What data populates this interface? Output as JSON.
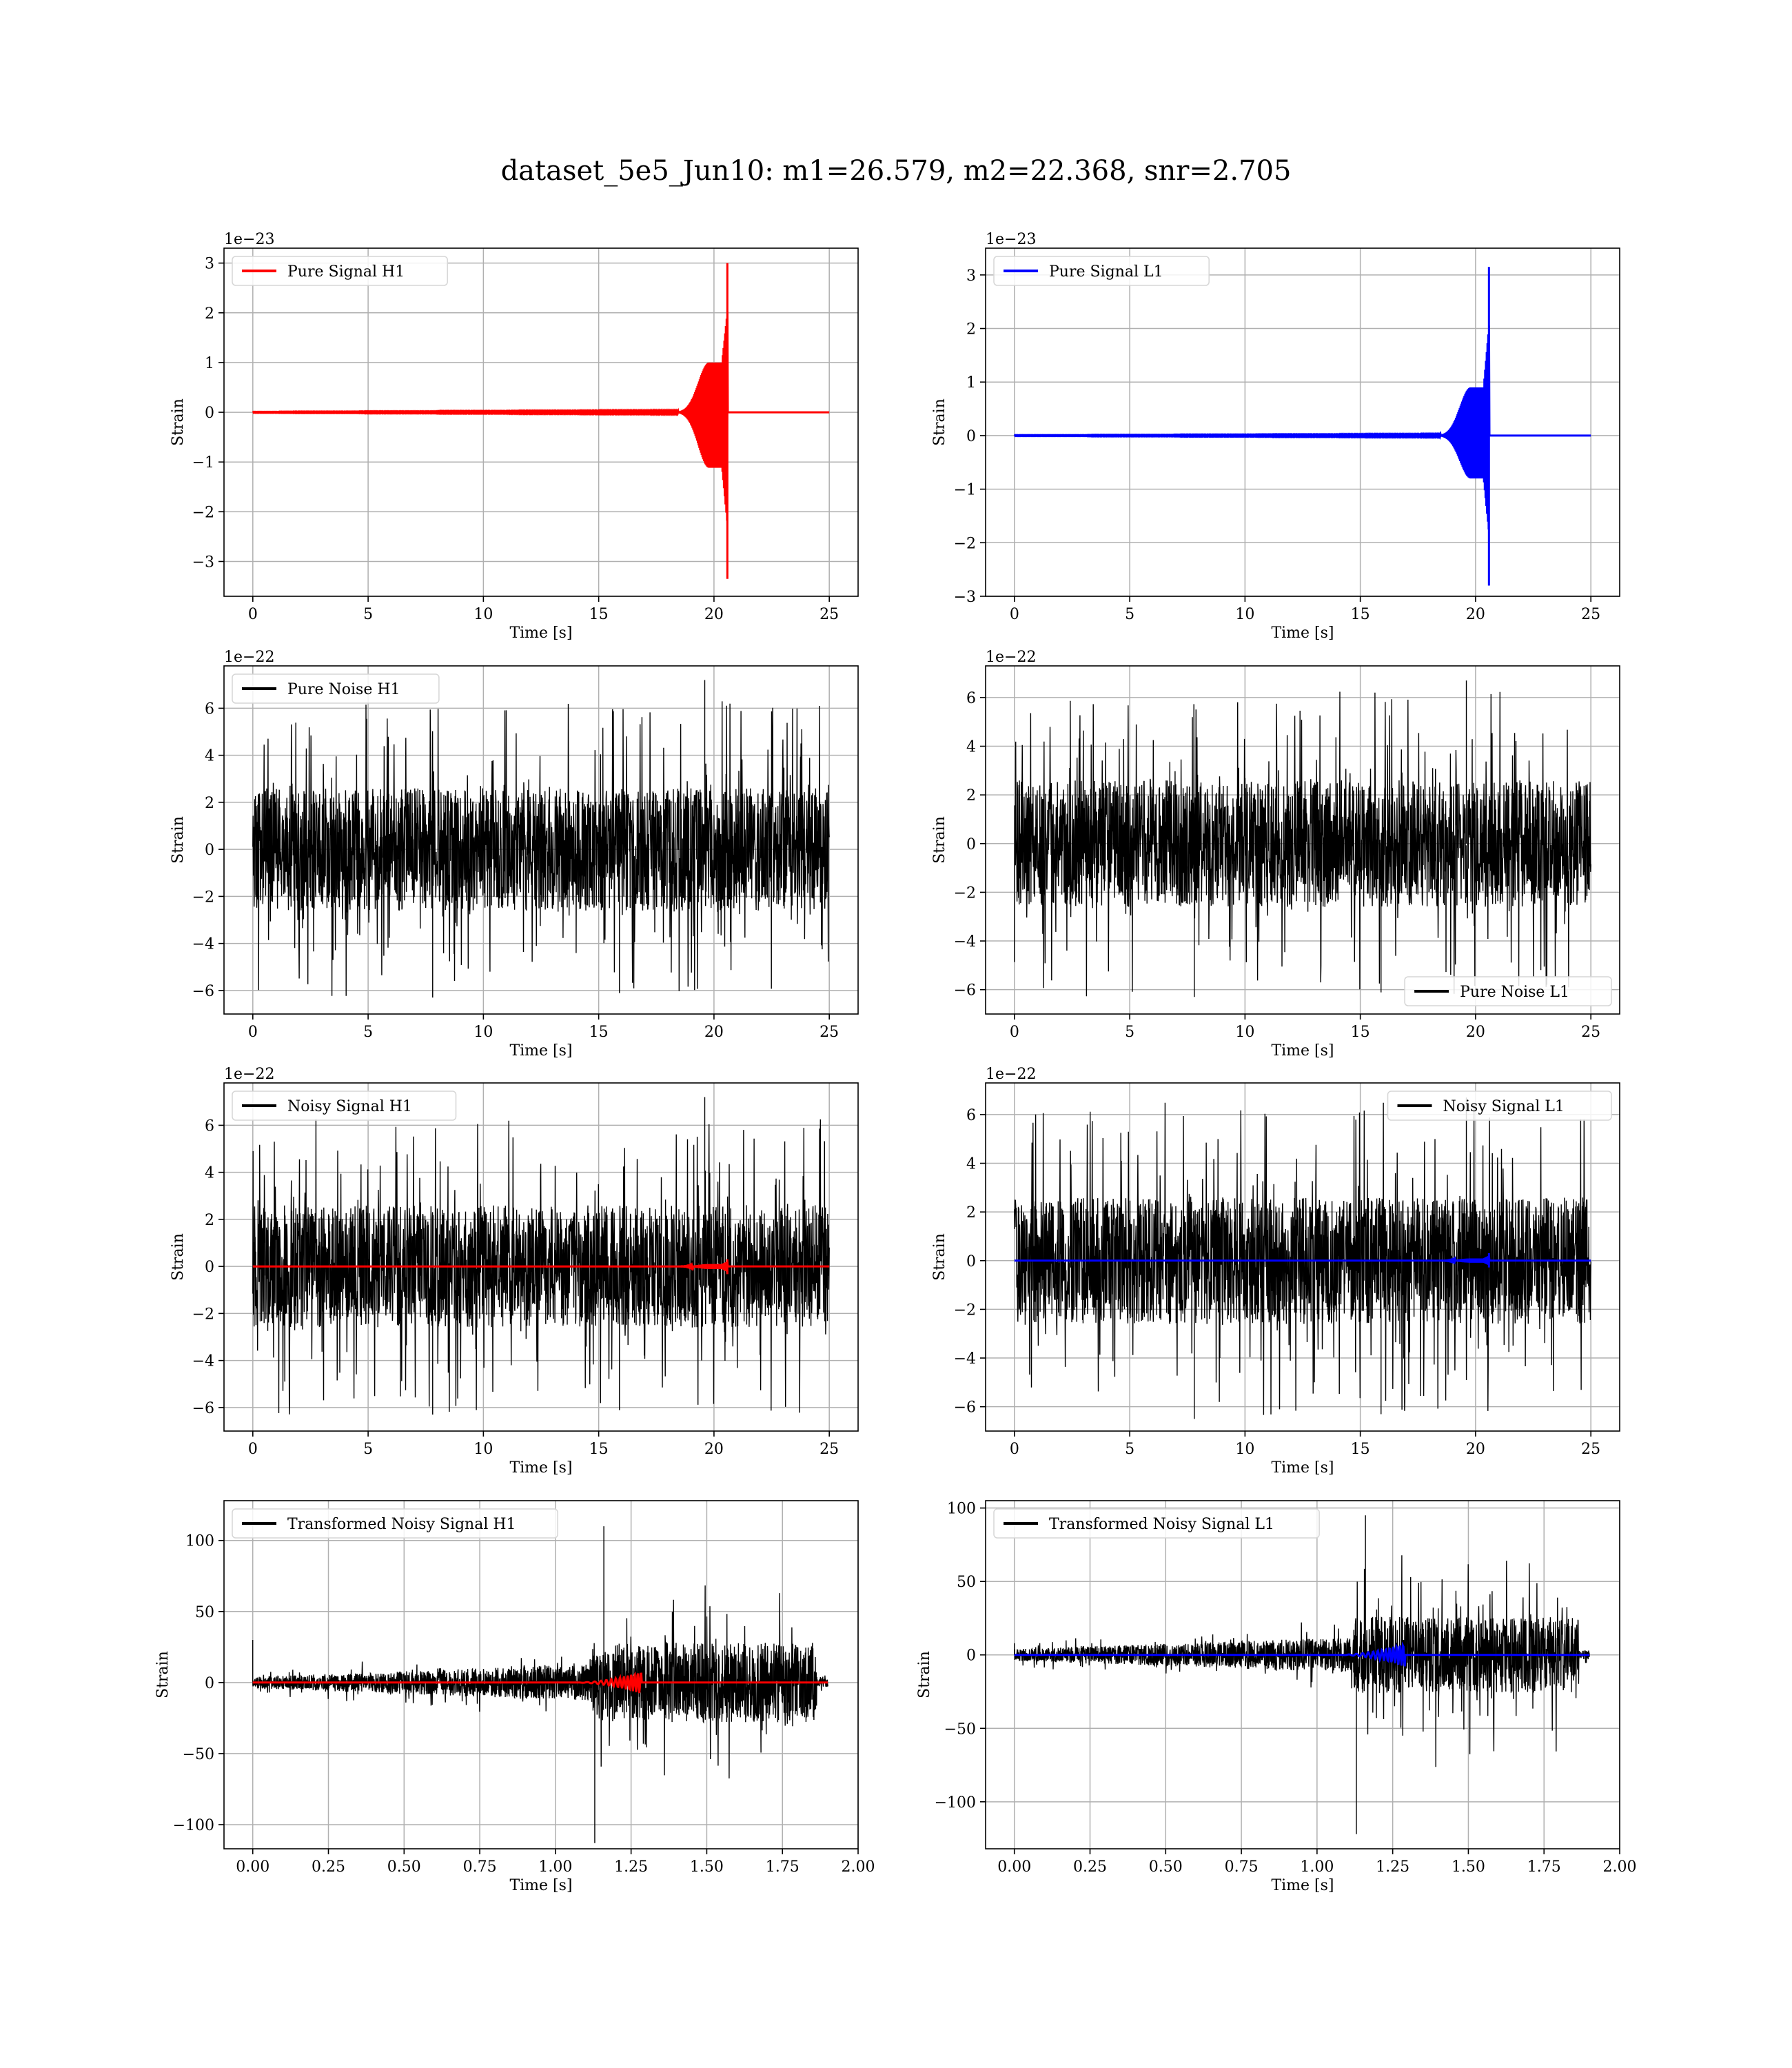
{
  "figure_title": "dataset_5e5_Jun10: m1=26.579, m2=22.368, snr=2.705",
  "colors": {
    "h1_signal": "#ff0000",
    "l1_signal": "#0000ff",
    "noise": "#000000",
    "grid": "#b0b0b0"
  },
  "chart_data": [
    {
      "type": "line",
      "panel": "pure-signal-h1",
      "xlabel": "Time [s]",
      "ylabel": "Strain",
      "multiplier": "1e−23",
      "xlim": [
        -1.25,
        26.25
      ],
      "ylim": [
        -3.7,
        3.3
      ],
      "xticks": [
        0,
        5,
        10,
        15,
        20,
        25
      ],
      "xtick_labels": [
        "0",
        "5",
        "10",
        "15",
        "20",
        "25"
      ],
      "yticks": [
        -3,
        -2,
        -1,
        0,
        1,
        2,
        3
      ],
      "ytick_labels": [
        "−3",
        "−2",
        "−1",
        "0",
        "1",
        "2",
        "3"
      ],
      "grid": true,
      "legend_loc": "upper left",
      "series": [
        {
          "name": "Pure Signal H1",
          "color": "#ff0000",
          "kind": "chirp",
          "x_range": [
            0,
            25
          ],
          "merger": 20.6,
          "peak_pos": 3.0,
          "peak_neg": -3.35,
          "plateau": 1.0
        }
      ]
    },
    {
      "type": "line",
      "panel": "pure-signal-l1",
      "xlabel": "Time [s]",
      "ylabel": "Strain",
      "multiplier": "1e−23",
      "xlim": [
        -1.25,
        26.25
      ],
      "ylim": [
        -3.0,
        3.5
      ],
      "xticks": [
        0,
        5,
        10,
        15,
        20,
        25
      ],
      "xtick_labels": [
        "0",
        "5",
        "10",
        "15",
        "20",
        "25"
      ],
      "yticks": [
        -3,
        -2,
        -1,
        0,
        1,
        2,
        3
      ],
      "ytick_labels": [
        "−3",
        "−2",
        "−1",
        "0",
        "1",
        "2",
        "3"
      ],
      "grid": true,
      "legend_loc": "upper left",
      "series": [
        {
          "name": "Pure Signal L1",
          "color": "#0000ff",
          "kind": "chirp",
          "x_range": [
            0,
            25
          ],
          "merger": 20.6,
          "peak_pos": 3.15,
          "peak_neg": -2.8,
          "plateau": 0.9
        }
      ]
    },
    {
      "type": "line",
      "panel": "pure-noise-h1",
      "xlabel": "Time [s]",
      "ylabel": "Strain",
      "multiplier": "1e−22",
      "xlim": [
        -1.25,
        26.25
      ],
      "ylim": [
        -7,
        7.8
      ],
      "xticks": [
        0,
        5,
        10,
        15,
        20,
        25
      ],
      "xtick_labels": [
        "0",
        "5",
        "10",
        "15",
        "20",
        "25"
      ],
      "yticks": [
        -6,
        -4,
        -2,
        0,
        2,
        4,
        6
      ],
      "ytick_labels": [
        "−6",
        "−4",
        "−2",
        "0",
        "2",
        "4",
        "6"
      ],
      "grid": true,
      "legend_loc": "upper left",
      "series": [
        {
          "name": "Pure Noise H1",
          "color": "#000000",
          "kind": "noise",
          "x_range": [
            0,
            25
          ],
          "band": 2.6,
          "max": 7.2,
          "min": -6.3
        }
      ]
    },
    {
      "type": "line",
      "panel": "pure-noise-l1",
      "xlabel": "Time [s]",
      "ylabel": "Strain",
      "multiplier": "1e−22",
      "xlim": [
        -1.25,
        26.25
      ],
      "ylim": [
        -7,
        7.3
      ],
      "xticks": [
        0,
        5,
        10,
        15,
        20,
        25
      ],
      "xtick_labels": [
        "0",
        "5",
        "10",
        "15",
        "20",
        "25"
      ],
      "yticks": [
        -6,
        -4,
        -2,
        0,
        2,
        4,
        6
      ],
      "ytick_labels": [
        "−6",
        "−4",
        "−2",
        "0",
        "2",
        "4",
        "6"
      ],
      "grid": true,
      "legend_loc": "lower right",
      "series": [
        {
          "name": "Pure Noise L1",
          "color": "#000000",
          "kind": "noise",
          "x_range": [
            0,
            25
          ],
          "band": 2.6,
          "max": 6.7,
          "min": -6.3
        }
      ]
    },
    {
      "type": "line",
      "panel": "noisy-signal-h1",
      "xlabel": "Time [s]",
      "ylabel": "Strain",
      "multiplier": "1e−22",
      "xlim": [
        -1.25,
        26.25
      ],
      "ylim": [
        -7,
        7.8
      ],
      "xticks": [
        0,
        5,
        10,
        15,
        20,
        25
      ],
      "xtick_labels": [
        "0",
        "5",
        "10",
        "15",
        "20",
        "25"
      ],
      "yticks": [
        -6,
        -4,
        -2,
        0,
        2,
        4,
        6
      ],
      "ytick_labels": [
        "−6",
        "−4",
        "−2",
        "0",
        "2",
        "4",
        "6"
      ],
      "grid": true,
      "legend_loc": "upper left",
      "series": [
        {
          "name": "Noisy Signal H1",
          "color": "#000000",
          "kind": "noise",
          "x_range": [
            0,
            25
          ],
          "band": 2.6,
          "max": 7.2,
          "min": -6.3
        },
        {
          "name": "",
          "color": "#ff0000",
          "kind": "chirp",
          "x_range": [
            0,
            25
          ],
          "merger": 20.6,
          "peak_pos": 0.3,
          "peak_neg": -0.33,
          "plateau": 0.1
        }
      ]
    },
    {
      "type": "line",
      "panel": "noisy-signal-l1",
      "xlabel": "Time [s]",
      "ylabel": "Strain",
      "multiplier": "1e−22",
      "xlim": [
        -1.25,
        26.25
      ],
      "ylim": [
        -7,
        7.3
      ],
      "xticks": [
        0,
        5,
        10,
        15,
        20,
        25
      ],
      "xtick_labels": [
        "0",
        "5",
        "10",
        "15",
        "20",
        "25"
      ],
      "yticks": [
        -6,
        -4,
        -2,
        0,
        2,
        4,
        6
      ],
      "ytick_labels": [
        "−6",
        "−4",
        "−2",
        "0",
        "2",
        "4",
        "6"
      ],
      "grid": true,
      "legend_loc": "upper right",
      "series": [
        {
          "name": "Noisy Signal L1",
          "color": "#000000",
          "kind": "noise",
          "x_range": [
            0,
            25
          ],
          "band": 2.6,
          "max": 6.7,
          "min": -6.5
        },
        {
          "name": "",
          "color": "#0000ff",
          "kind": "chirp",
          "x_range": [
            0,
            25
          ],
          "merger": 20.6,
          "peak_pos": 0.31,
          "peak_neg": -0.28,
          "plateau": 0.09
        }
      ]
    },
    {
      "type": "line",
      "panel": "transformed-noisy-signal-h1",
      "xlabel": "Time [s]",
      "ylabel": "Strain",
      "multiplier": "",
      "xlim": [
        -0.095,
        2.0
      ],
      "ylim": [
        -117,
        128
      ],
      "xticks": [
        0,
        0.25,
        0.5,
        0.75,
        1.0,
        1.25,
        1.5,
        1.75,
        2.0
      ],
      "xtick_labels": [
        "0.00",
        "0.25",
        "0.50",
        "0.75",
        "1.00",
        "1.25",
        "1.50",
        "1.75",
        "2.00"
      ],
      "yticks": [
        -100,
        -50,
        0,
        50,
        100
      ],
      "ytick_labels": [
        "−100",
        "−50",
        "0",
        "50",
        "100"
      ],
      "grid": true,
      "legend_loc": "upper left",
      "series": [
        {
          "name": "Transformed Noisy Signal H1",
          "color": "#000000",
          "kind": "transformed",
          "x_range": [
            0,
            1.9
          ],
          "jump": 1.12,
          "end": 1.865,
          "pre_band_start": 4,
          "pre_band_end": 13,
          "post_band": 28,
          "max": 110,
          "min": -113,
          "spike_at_zero": 30
        },
        {
          "name": "",
          "color": "#ff0000",
          "kind": "whitened_chirp",
          "x_range": [
            0,
            1.9
          ],
          "start": 1.06,
          "merger": 1.285,
          "amp": 8
        }
      ]
    },
    {
      "type": "line",
      "panel": "transformed-noisy-signal-l1",
      "xlabel": "Time [s]",
      "ylabel": "Strain",
      "multiplier": "",
      "xlim": [
        -0.095,
        2.0
      ],
      "ylim": [
        -132,
        105
      ],
      "xticks": [
        0,
        0.25,
        0.5,
        0.75,
        1.0,
        1.25,
        1.5,
        1.75,
        2.0
      ],
      "xtick_labels": [
        "0.00",
        "0.25",
        "0.50",
        "0.75",
        "1.00",
        "1.25",
        "1.50",
        "1.75",
        "2.00"
      ],
      "yticks": [
        -100,
        -50,
        0,
        50,
        100
      ],
      "ytick_labels": [
        "−100",
        "−50",
        "0",
        "50",
        "100"
      ],
      "grid": true,
      "legend_loc": "upper left",
      "series": [
        {
          "name": "Transformed Noisy Signal L1",
          "color": "#000000",
          "kind": "transformed",
          "x_range": [
            0,
            1.9
          ],
          "jump": 1.12,
          "end": 1.865,
          "pre_band_start": 4,
          "pre_band_end": 12,
          "post_band": 26,
          "max": 95,
          "min": -122,
          "spike_at_zero": 8
        },
        {
          "name": "",
          "color": "#0000ff",
          "kind": "whitened_chirp",
          "x_range": [
            0,
            1.9
          ],
          "start": 1.06,
          "merger": 1.29,
          "amp": 8
        }
      ]
    }
  ]
}
